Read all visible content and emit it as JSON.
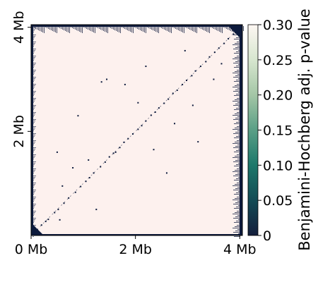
{
  "chart_data": {
    "type": "heatmap",
    "title": "",
    "x_ticks": [
      {
        "value": 0,
        "label": "0 Mb"
      },
      {
        "value": 2,
        "label": "2 Mb"
      },
      {
        "value": 4,
        "label": "4 Mb"
      }
    ],
    "y_ticks": [
      {
        "value": 2,
        "label": "2 Mb"
      },
      {
        "value": 4,
        "label": "4 Mb"
      }
    ],
    "x_range": [
      0,
      4.05
    ],
    "y_range": [
      0,
      4.05
    ],
    "colorbar": {
      "label": "Benjamini-Hochberg adj. p-value",
      "range": [
        0,
        0.3
      ],
      "ticks": [
        {
          "value": 0,
          "label": "0"
        },
        {
          "value": 0.05,
          "label": "0.05"
        },
        {
          "value": 0.1,
          "label": "0.10"
        },
        {
          "value": 0.15,
          "label": "0.15"
        },
        {
          "value": 0.2,
          "label": "0.20"
        },
        {
          "value": 0.25,
          "label": "0.25"
        },
        {
          "value": 0.3,
          "label": "0.30"
        }
      ],
      "colors": [
        "#141e3c",
        "#134b55",
        "#1c786b",
        "#5a9f86",
        "#a4c6a6",
        "#d7e6cf",
        "#fdf7f3"
      ]
    },
    "background_color": "#fdf1ee",
    "mark_color": "#0d1a3c",
    "points": [
      {
        "x": 0.06,
        "y": 0.06
      },
      {
        "x": 0.12,
        "y": 0.11
      },
      {
        "x": 0.2,
        "y": 0.2
      },
      {
        "x": 0.28,
        "y": 0.27
      },
      {
        "x": 0.33,
        "y": 0.31
      },
      {
        "x": 0.45,
        "y": 0.44
      },
      {
        "x": 0.52,
        "y": 0.5
      },
      {
        "x": 0.63,
        "y": 0.62
      },
      {
        "x": 0.72,
        "y": 0.72
      },
      {
        "x": 0.85,
        "y": 0.83
      },
      {
        "x": 0.95,
        "y": 0.94
      },
      {
        "x": 1.05,
        "y": 1.04
      },
      {
        "x": 1.12,
        "y": 1.11
      },
      {
        "x": 1.2,
        "y": 1.2
      },
      {
        "x": 1.33,
        "y": 1.32
      },
      {
        "x": 1.42,
        "y": 1.41
      },
      {
        "x": 1.5,
        "y": 1.51
      },
      {
        "x": 1.58,
        "y": 1.58
      },
      {
        "x": 1.62,
        "y": 1.6
      },
      {
        "x": 1.7,
        "y": 1.69
      },
      {
        "x": 1.78,
        "y": 1.79
      },
      {
        "x": 1.86,
        "y": 1.86
      },
      {
        "x": 1.95,
        "y": 1.95
      },
      {
        "x": 2.05,
        "y": 2.04
      },
      {
        "x": 2.12,
        "y": 2.11
      },
      {
        "x": 2.2,
        "y": 2.2
      },
      {
        "x": 2.3,
        "y": 2.31
      },
      {
        "x": 2.38,
        "y": 2.37
      },
      {
        "x": 2.45,
        "y": 2.45
      },
      {
        "x": 2.55,
        "y": 2.54
      },
      {
        "x": 2.63,
        "y": 2.62
      },
      {
        "x": 2.72,
        "y": 2.73
      },
      {
        "x": 2.8,
        "y": 2.79
      },
      {
        "x": 2.9,
        "y": 2.9
      },
      {
        "x": 2.98,
        "y": 2.98
      },
      {
        "x": 3.08,
        "y": 3.07
      },
      {
        "x": 3.15,
        "y": 3.16
      },
      {
        "x": 3.25,
        "y": 3.25
      },
      {
        "x": 3.35,
        "y": 3.34
      },
      {
        "x": 3.42,
        "y": 3.43
      },
      {
        "x": 3.52,
        "y": 3.52
      },
      {
        "x": 3.6,
        "y": 3.6
      },
      {
        "x": 3.7,
        "y": 3.69
      },
      {
        "x": 3.78,
        "y": 3.78
      },
      {
        "x": 3.88,
        "y": 3.87
      },
      {
        "x": 3.96,
        "y": 3.95
      },
      {
        "x": 0.8,
        "y": 1.3
      },
      {
        "x": 1.1,
        "y": 1.45
      },
      {
        "x": 0.6,
        "y": 0.95
      },
      {
        "x": 2.6,
        "y": 1.2
      },
      {
        "x": 2.05,
        "y": 2.55
      },
      {
        "x": 1.25,
        "y": 0.5
      },
      {
        "x": 3.1,
        "y": 2.5
      },
      {
        "x": 2.2,
        "y": 3.25
      },
      {
        "x": 1.8,
        "y": 2.9
      },
      {
        "x": 3.2,
        "y": 1.8
      },
      {
        "x": 0.9,
        "y": 2.3
      },
      {
        "x": 2.35,
        "y": 1.65
      },
      {
        "x": 1.45,
        "y": 3.0
      },
      {
        "x": 3.5,
        "y": 3.0
      },
      {
        "x": 2.75,
        "y": 2.15
      },
      {
        "x": 0.5,
        "y": 1.6
      },
      {
        "x": 3.65,
        "y": 3.3
      },
      {
        "x": 1.35,
        "y": 2.95
      },
      {
        "x": 2.95,
        "y": 3.55
      },
      {
        "x": 0.55,
        "y": 0.3
      }
    ]
  }
}
